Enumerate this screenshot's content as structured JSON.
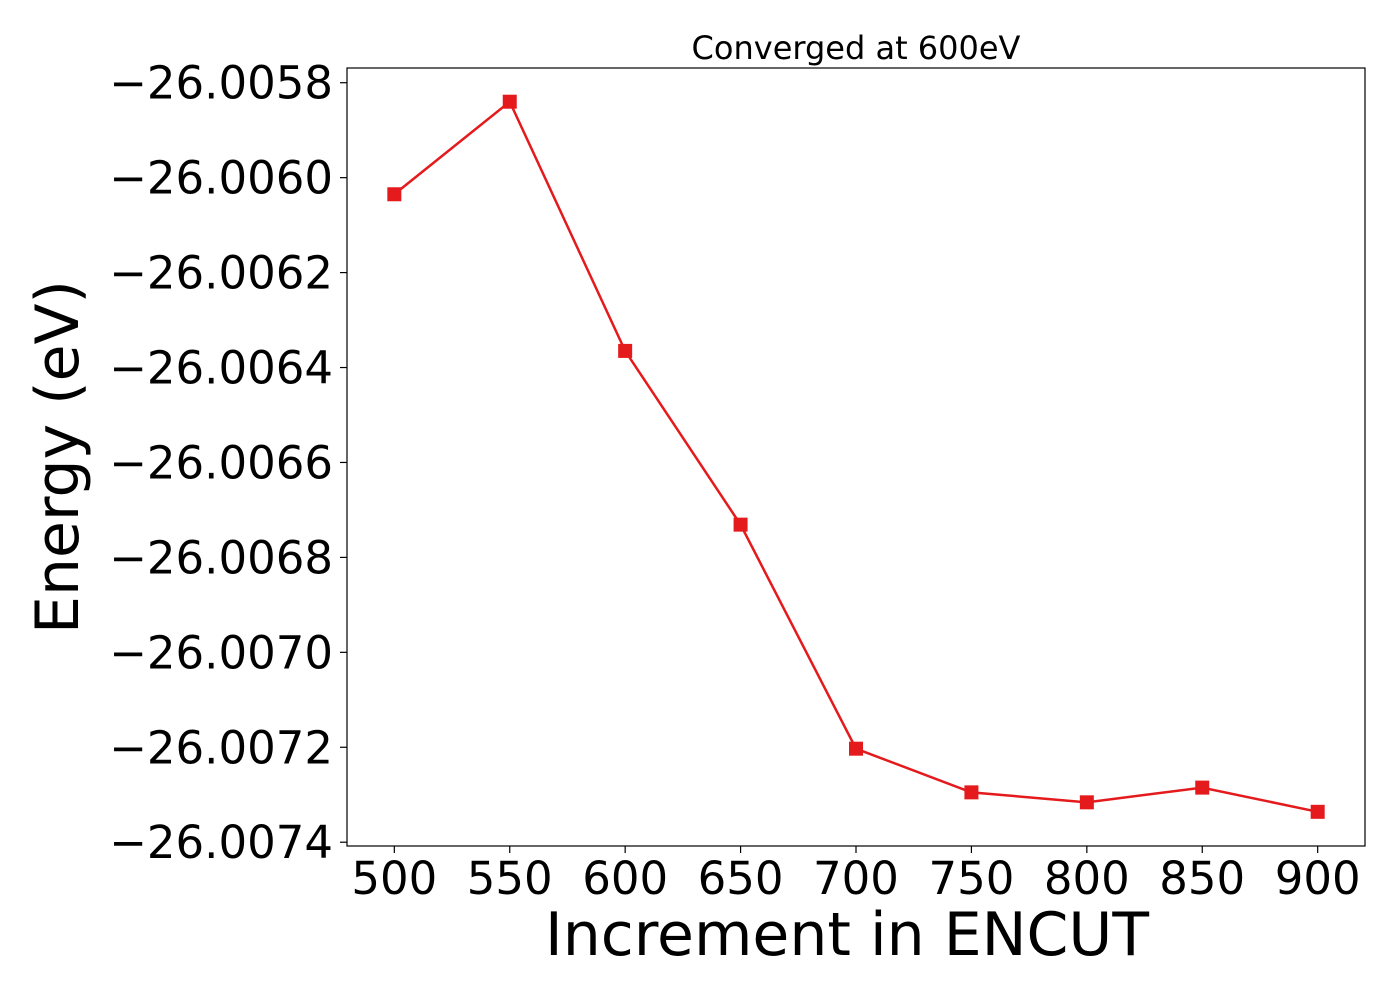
{
  "chart_data": {
    "type": "line",
    "title": "Converged at 600eV",
    "xlabel": "Increment in ENCUT",
    "ylabel": "Energy (eV)",
    "x": [
      500,
      550,
      600,
      650,
      700,
      750,
      800,
      850,
      900
    ],
    "series": [
      {
        "values": [
          -26.006035,
          -26.00584,
          -26.006365,
          -26.006731,
          -26.007203,
          -26.007295,
          -26.007316,
          -26.007285,
          -26.007336
        ],
        "color": "#e41a1c",
        "marker": "square"
      }
    ],
    "xticks": [
      500,
      550,
      600,
      650,
      700,
      750,
      800,
      850,
      900
    ],
    "xtick_labels": [
      "500",
      "550",
      "600",
      "650",
      "700",
      "750",
      "800",
      "850",
      "900"
    ],
    "yticks": [
      -26.0058,
      -26.006,
      -26.0062,
      -26.0064,
      -26.0066,
      -26.0068,
      -26.007,
      -26.0072,
      -26.0074
    ],
    "ytick_labels": [
      "−26.0058",
      "−26.0060",
      "−26.0062",
      "−26.0064",
      "−26.0066",
      "−26.0068",
      "−26.0070",
      "−26.0072",
      "−26.0074"
    ],
    "xlim": [
      479.5,
      920.5
    ],
    "ylim": [
      -26.007408,
      -26.005769
    ],
    "grid": false,
    "legend": "none"
  }
}
